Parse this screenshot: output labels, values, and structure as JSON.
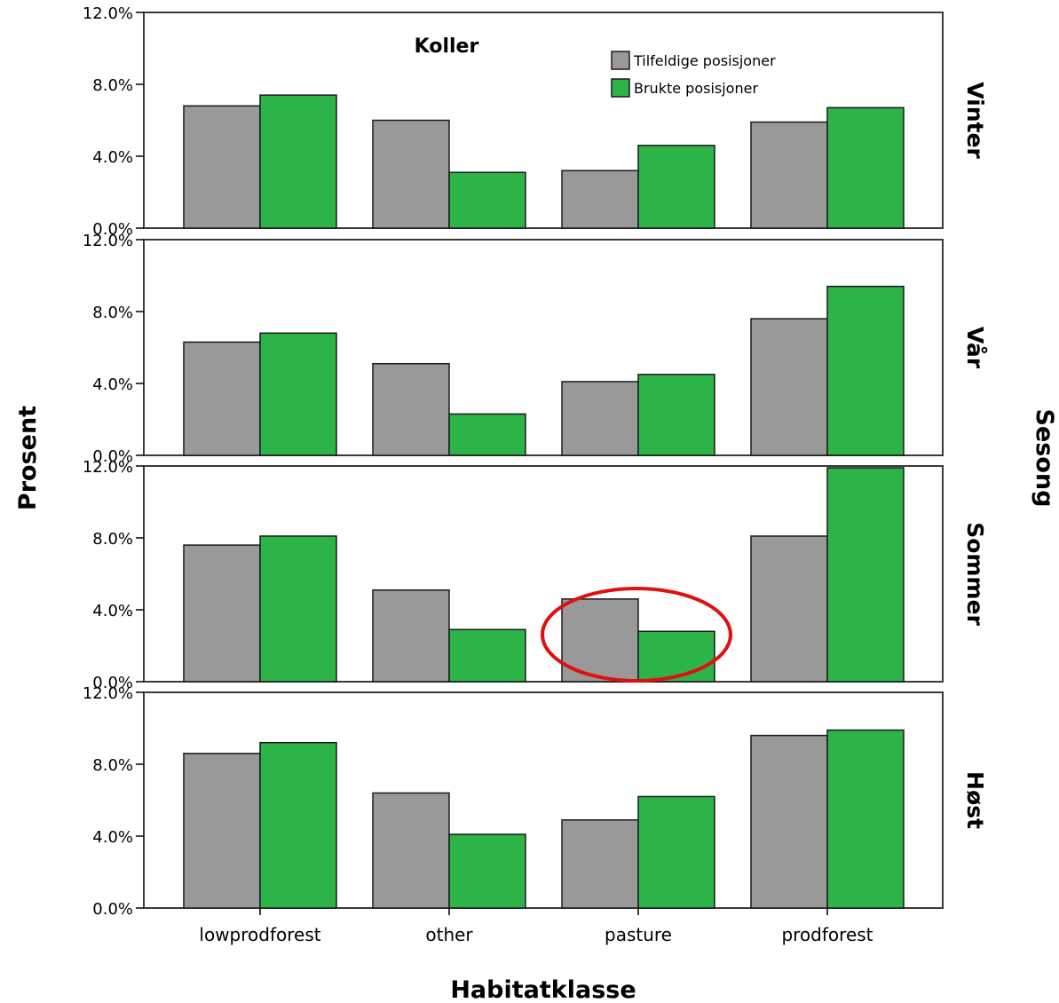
{
  "chart_data": {
    "type": "bar",
    "title": "Koller",
    "xlabel": "Habitatklasse",
    "ylabel": "Prosent",
    "facet_label": "Sesong",
    "categories": [
      "lowprodforest",
      "other",
      "pasture",
      "prodforest"
    ],
    "ylim": [
      0,
      12
    ],
    "yticks": [
      "0.0%",
      "4.0%",
      "8.0%",
      "12.0%"
    ],
    "legend": [
      {
        "name": "Tilfeldige posisjoner",
        "color": "#999999"
      },
      {
        "name": "Brukte posisjoner",
        "color": "#2db448"
      }
    ],
    "legend_position": "top-right",
    "panels": [
      {
        "label": "Vinter",
        "series": [
          {
            "name": "Tilfeldige posisjoner",
            "values": [
              6.8,
              6.0,
              3.2,
              5.9
            ]
          },
          {
            "name": "Brukte posisjoner",
            "values": [
              7.4,
              3.1,
              4.6,
              6.7
            ]
          }
        ]
      },
      {
        "label": "Vår",
        "series": [
          {
            "name": "Tilfeldige posisjoner",
            "values": [
              6.3,
              5.1,
              4.1,
              7.6
            ]
          },
          {
            "name": "Brukte posisjoner",
            "values": [
              6.8,
              2.3,
              4.5,
              9.4
            ]
          }
        ]
      },
      {
        "label": "Sommer",
        "series": [
          {
            "name": "Tilfeldige posisjoner",
            "values": [
              7.6,
              5.1,
              4.6,
              8.1
            ]
          },
          {
            "name": "Brukte posisjoner",
            "values": [
              8.1,
              2.9,
              2.8,
              11.9
            ]
          }
        ]
      },
      {
        "label": "Høst",
        "series": [
          {
            "name": "Tilfeldige posisjoner",
            "values": [
              8.6,
              6.4,
              4.9,
              9.6
            ]
          },
          {
            "name": "Brukte posisjoner",
            "values": [
              9.2,
              4.1,
              6.2,
              9.9
            ]
          }
        ]
      }
    ],
    "annotation": {
      "type": "ellipse",
      "color": "#e01010",
      "panel": "Sommer",
      "category": "pasture"
    },
    "grid": false
  }
}
